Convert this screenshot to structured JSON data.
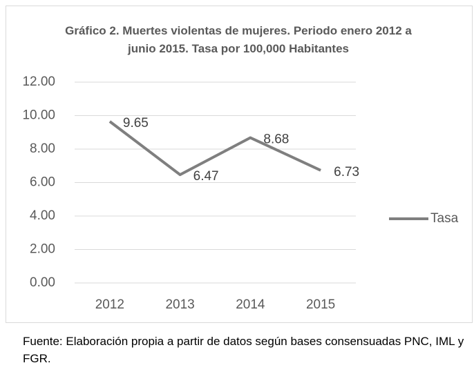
{
  "chart_data": {
    "type": "line",
    "title": "Gráfico 2. Muertes violentas de mujeres. Periodo enero 2012 a junio 2015. Tasa por 100,000 Habitantes",
    "categories": [
      "2012",
      "2013",
      "2014",
      "2015"
    ],
    "series": [
      {
        "name": "Tasa",
        "color": "#7f7f7f",
        "values": [
          9.65,
          6.47,
          8.68,
          6.73
        ]
      }
    ],
    "ylim": [
      0,
      12
    ],
    "yticks": [
      {
        "value": 0,
        "label": "0.00"
      },
      {
        "value": 2,
        "label": "2.00"
      },
      {
        "value": 4,
        "label": "4.00"
      },
      {
        "value": 6,
        "label": "6.00"
      },
      {
        "value": 8,
        "label": "8.00"
      },
      {
        "value": 10,
        "label": "10.00"
      },
      {
        "value": 12,
        "label": "12.00"
      }
    ],
    "grid": true,
    "legend": "right",
    "source": "Fuente: Elaboración propia a partir de datos según bases consensuadas PNC, IML y FGR."
  }
}
